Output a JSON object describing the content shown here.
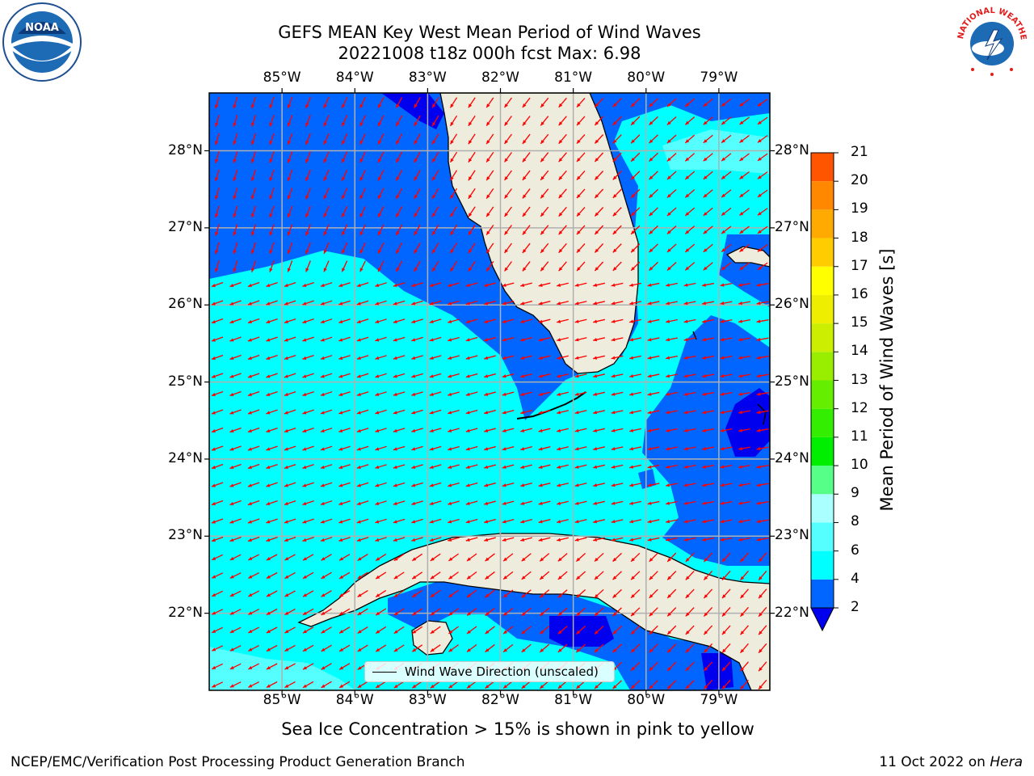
{
  "title_line1": "GEFS MEAN Key West Mean Period of Wind Waves",
  "title_line2": "20221008 t18z 000h fcst   Max: 6.98",
  "map": {
    "lon_ticks": [
      "85°W",
      "84°W",
      "83°W",
      "82°W",
      "81°W",
      "80°W",
      "79°W"
    ],
    "lat_ticks": [
      "28°N",
      "27°N",
      "26°N",
      "25°N",
      "24°N",
      "23°N",
      "22°N"
    ],
    "lon_values": [
      -85,
      -84,
      -83,
      -82,
      -81,
      -80,
      -79
    ],
    "lat_values": [
      28,
      27,
      26,
      25,
      24,
      23,
      22
    ],
    "lon_range": [
      -86.0,
      -78.3
    ],
    "lat_range": [
      21.0,
      28.75
    ],
    "arrow_color": "#ff0000",
    "land_color": "#eeecdc",
    "ocean_fill": "#00ffff",
    "gridlines": true
  },
  "colorbar": {
    "label": "Mean Period of Wind Waves [s]",
    "ticks": [
      "2",
      "4",
      "6",
      "8",
      "9",
      "10",
      "11",
      "12",
      "13",
      "14",
      "15",
      "16",
      "17",
      "18",
      "19",
      "20",
      "21"
    ],
    "colors": [
      "#0066ff",
      "#00ffff",
      "#55ffff",
      "#aaffff",
      "#55ff88",
      "#00ee00",
      "#33ee00",
      "#66ee00",
      "#99ee00",
      "#ccee00",
      "#eeee00",
      "#ffff00",
      "#ffcc00",
      "#ffaa00",
      "#ff8800",
      "#ff5500",
      "#ff2200"
    ],
    "under_color": "#0000ee"
  },
  "legend": {
    "label": "Wind Wave Direction (unscaled)"
  },
  "sea_ice_note": "Sea Ice Concentration > 15% is shown in pink to yellow",
  "footer": {
    "left": "NCEP/EMC/Verification Post Processing Product Generation Branch",
    "date": "11 Oct 2022 on",
    "host": "Hera"
  },
  "logos": {
    "noaa": "NOAA",
    "nws": "NATIONAL WEATHER SERVICE"
  }
}
